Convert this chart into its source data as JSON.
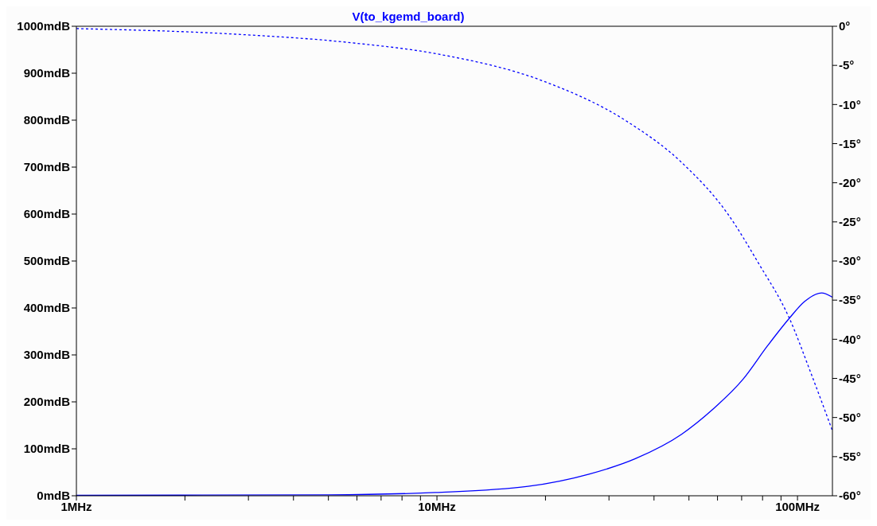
{
  "chart_data": {
    "type": "line",
    "title": "V(to_kgemd_board)",
    "log": "x",
    "marker": "none",
    "xlim": [
      1,
      125
    ],
    "xticks": [
      {
        "value": 1,
        "label": "1MHz"
      },
      {
        "value": 2,
        "label": null
      },
      {
        "value": 3,
        "label": null
      },
      {
        "value": 4,
        "label": null
      },
      {
        "value": 5,
        "label": null
      },
      {
        "value": 6,
        "label": null
      },
      {
        "value": 7,
        "label": null
      },
      {
        "value": 8,
        "label": null
      },
      {
        "value": 9,
        "label": null
      },
      {
        "value": 10,
        "label": "10MHz"
      },
      {
        "value": 20,
        "label": null
      },
      {
        "value": 30,
        "label": null
      },
      {
        "value": 40,
        "label": null
      },
      {
        "value": 50,
        "label": null
      },
      {
        "value": 60,
        "label": null
      },
      {
        "value": 70,
        "label": null
      },
      {
        "value": 80,
        "label": null
      },
      {
        "value": 90,
        "label": null
      },
      {
        "value": 100,
        "label": "100MHz"
      }
    ],
    "ylim": [
      0,
      1000
    ],
    "yticks": [
      {
        "value": 0,
        "label": "0mdB"
      },
      {
        "value": 100,
        "label": "100mdB"
      },
      {
        "value": 200,
        "label": "200mdB"
      },
      {
        "value": 300,
        "label": "300mdB"
      },
      {
        "value": 400,
        "label": "400mdB"
      },
      {
        "value": 500,
        "label": "500mdB"
      },
      {
        "value": 600,
        "label": "600mdB"
      },
      {
        "value": 700,
        "label": "700mdB"
      },
      {
        "value": 800,
        "label": "800mdB"
      },
      {
        "value": 900,
        "label": "900mdB"
      },
      {
        "value": 1000,
        "label": "1000mdB"
      }
    ],
    "y2lim": [
      -60,
      0
    ],
    "y2ticks": [
      {
        "value": 0,
        "label": "0°"
      },
      {
        "value": -5,
        "label": "-5°"
      },
      {
        "value": -10,
        "label": "-10°"
      },
      {
        "value": -15,
        "label": "-15°"
      },
      {
        "value": -20,
        "label": "-20°"
      },
      {
        "value": -25,
        "label": "-25°"
      },
      {
        "value": -30,
        "label": "-30°"
      },
      {
        "value": -35,
        "label": "-35°"
      },
      {
        "value": -40,
        "label": "-40°"
      },
      {
        "value": -45,
        "label": "-45°"
      },
      {
        "value": -50,
        "label": "-50°"
      },
      {
        "value": -55,
        "label": "-55°"
      },
      {
        "value": -60,
        "label": "-60°"
      }
    ],
    "series": [
      {
        "color": "#0000ff",
        "line_style": "solid",
        "x": [
          1,
          5,
          9.9,
          17.9,
          26.4,
          35.5,
          47.7,
          58,
          70.6,
          82.7,
          94.9,
          104.7,
          116.6,
          125
        ],
        "values": [
          1,
          2,
          7,
          20,
          46,
          79,
          131,
          183,
          248,
          320,
          378,
          414,
          432,
          423
        ]
      },
      {
        "color": "#0000ff",
        "line_style": "dashed",
        "axis": "y2",
        "x": [
          1,
          2.73,
          5.77,
          10.2,
          19.7,
          33.5,
          47.7,
          64.1,
          78,
          94.9,
          108.9,
          125
        ],
        "values": [
          -0.3,
          -1,
          -2.1,
          -3.6,
          -7,
          -12.1,
          -17.4,
          -24,
          -30.3,
          -37.3,
          -44.3,
          -51.7
        ]
      }
    ]
  }
}
